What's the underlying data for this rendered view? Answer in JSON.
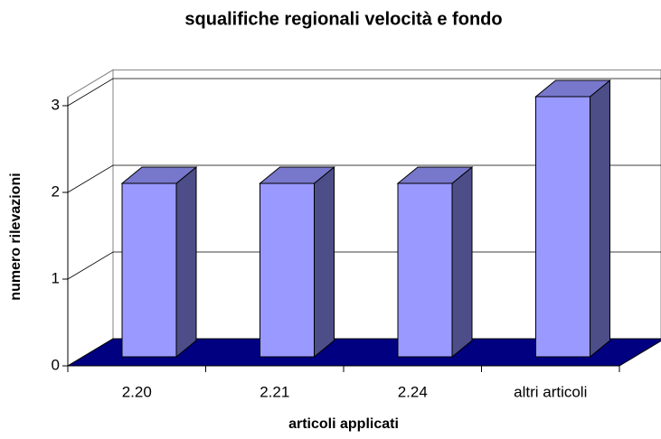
{
  "chart_data": {
    "type": "bar",
    "title": "squalifiche regionali velocità e fondo",
    "categories": [
      "2.20",
      "2.21",
      "2.24",
      "altri articoli"
    ],
    "values": [
      2,
      2,
      2,
      3
    ],
    "color": "#9999ff",
    "x_label": "articoli applicati",
    "y_label": "numero rilevazioni",
    "ylim": [
      0,
      3.1
    ],
    "yticks": [
      0,
      1,
      2,
      3
    ],
    "grid": true
  }
}
